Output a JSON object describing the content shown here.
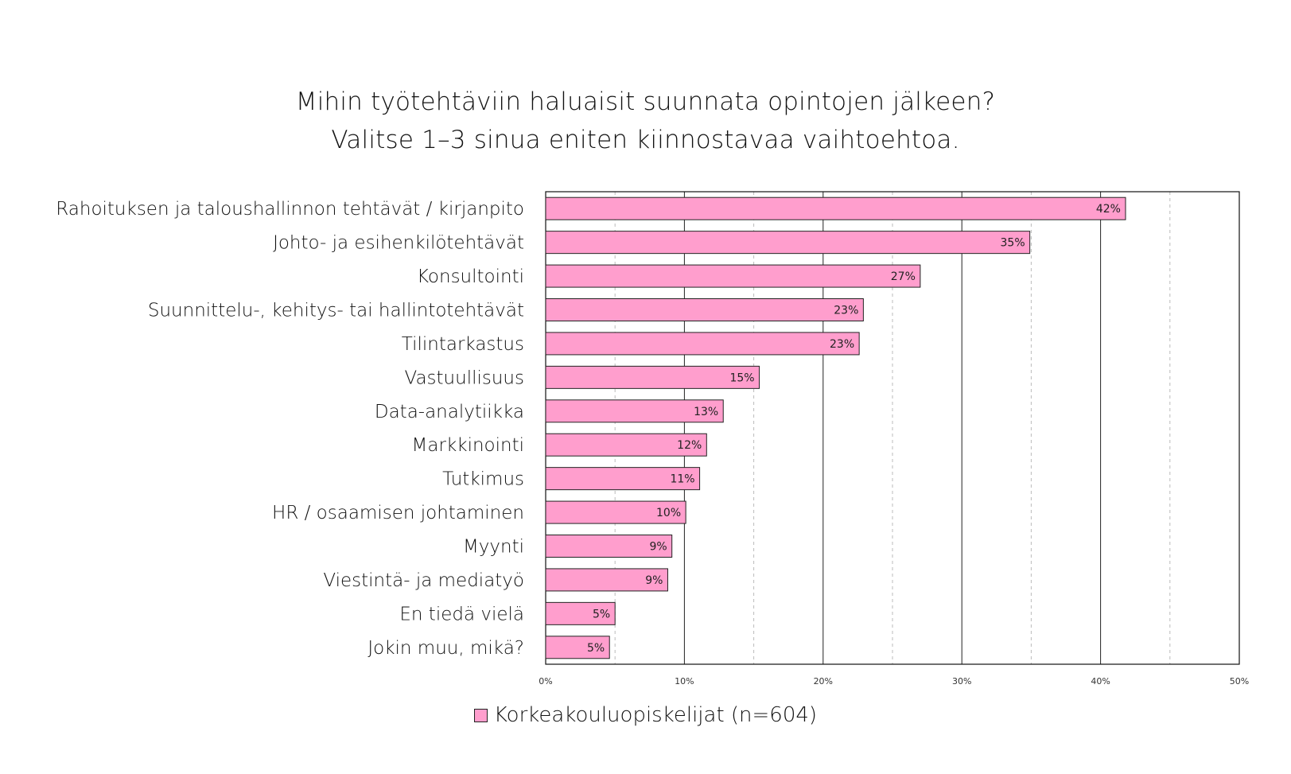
{
  "title": {
    "line1": "Mihin työtehtäviin haluaisit suunnata opintojen jälkeen?",
    "line2": "Valitse 1–3 sinua eniten kiinnostavaa vaihtoehtoa."
  },
  "colors": {
    "bar": "#ff9ecd",
    "bar_border": "#222222",
    "grid_major": "#222222",
    "grid_minor": "#bbbbbb"
  },
  "chart_data": {
    "type": "bar",
    "orientation": "horizontal",
    "title": "Mihin työtehtäviin haluaisit suunnata opintojen jälkeen? Valitse 1–3 sinua eniten kiinnostavaa vaihtoehtoa.",
    "categories": [
      "Rahoituksen ja taloushallinnon tehtävät / kirjanpito",
      "Johto- ja esihenkilötehtävät",
      "Konsultointi",
      "Suunnittelu-, kehitys- tai hallintotehtävät",
      "Tilintarkastus",
      "Vastuullisuus",
      "Data-analytiikka",
      "Markkinointi",
      "Tutkimus",
      "HR / osaamisen johtaminen",
      "Myynti",
      "Viestintä- ja mediatyö",
      "En tiedä vielä",
      "Jokin muu, mikä?"
    ],
    "series": [
      {
        "name": "Korkeakouluopiskelijat (n=604)",
        "values": [
          41.8,
          34.9,
          27.0,
          22.9,
          22.6,
          15.4,
          12.8,
          11.6,
          11.1,
          10.1,
          9.1,
          8.8,
          5.0,
          4.6
        ],
        "labels": [
          "42%",
          "35%",
          "27%",
          "23%",
          "23%",
          "15%",
          "13%",
          "12%",
          "11%",
          "10%",
          "9%",
          "9%",
          "5%",
          "5%"
        ]
      }
    ],
    "xlim": [
      0,
      50
    ],
    "x_ticks": [
      0,
      10,
      20,
      30,
      40,
      50
    ],
    "x_tick_labels": [
      "0%",
      "10%",
      "20%",
      "30%",
      "40%",
      "50%"
    ],
    "minor_grid": [
      5,
      15,
      25,
      35,
      45
    ],
    "grid": true,
    "legend_position": "bottom-center"
  }
}
